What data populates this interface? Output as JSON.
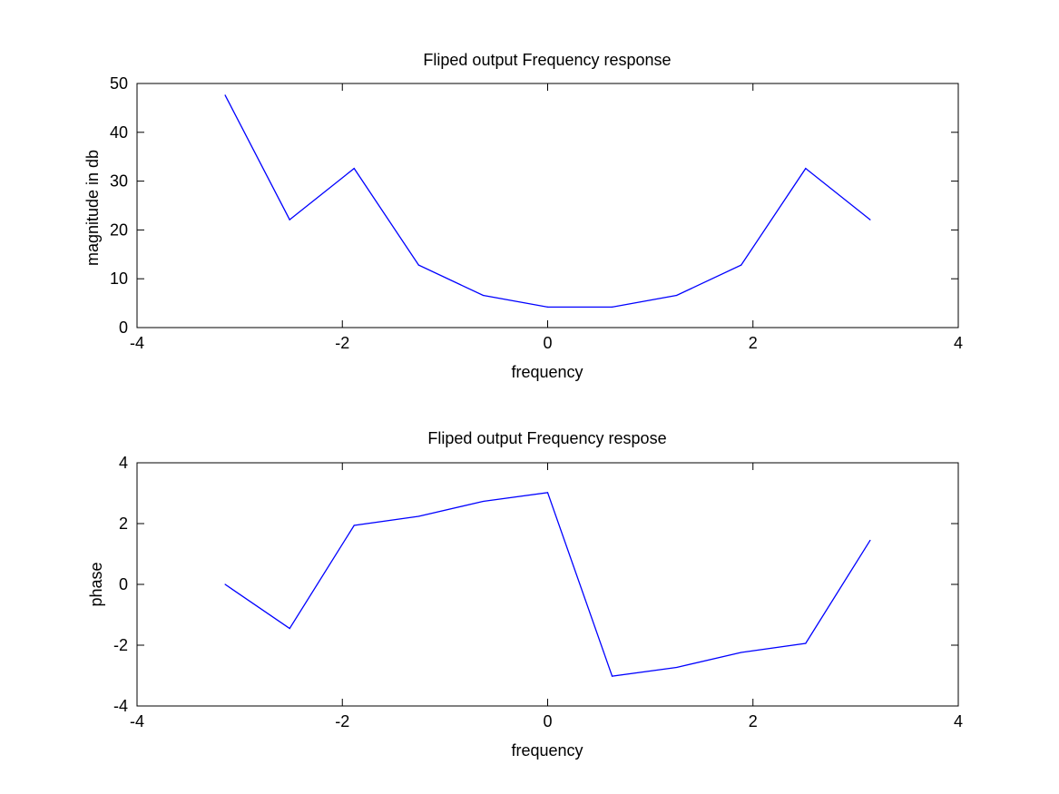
{
  "chart_data": [
    {
      "type": "line",
      "title": "Fliped output Frequency response",
      "xlabel": "frequency",
      "ylabel": "magnitude in db",
      "xlim": [
        -4,
        4
      ],
      "ylim": [
        0,
        50
      ],
      "xticks": [
        -4,
        -2,
        0,
        2,
        4
      ],
      "yticks": [
        0,
        10,
        20,
        30,
        40,
        50
      ],
      "grid": false,
      "series": [
        {
          "color": "#0000ff",
          "x": [
            -3.1416,
            -2.5133,
            -1.885,
            -1.2566,
            -0.6283,
            0,
            0.6283,
            1.2566,
            1.885,
            2.5133,
            3.1416
          ],
          "y": [
            47.6,
            22.1,
            32.6,
            12.8,
            6.6,
            4.2,
            4.2,
            6.6,
            12.8,
            32.6,
            22.1
          ]
        }
      ]
    },
    {
      "type": "line",
      "title": "Fliped output Frequency respose",
      "xlabel": "frequency",
      "ylabel": "phase",
      "xlim": [
        -4,
        4
      ],
      "ylim": [
        -4,
        4
      ],
      "xticks": [
        -4,
        -2,
        0,
        2,
        4
      ],
      "yticks": [
        -4,
        -2,
        0,
        2,
        4
      ],
      "grid": false,
      "series": [
        {
          "color": "#0000ff",
          "x": [
            -3.1416,
            -2.5133,
            -1.885,
            -1.2566,
            -0.6283,
            0,
            0.6283,
            1.2566,
            1.885,
            2.5133,
            3.1416
          ],
          "y": [
            0,
            -1.45,
            1.94,
            2.24,
            2.73,
            3.02,
            -3.02,
            -2.73,
            -2.24,
            -1.94,
            1.45
          ]
        }
      ]
    }
  ]
}
